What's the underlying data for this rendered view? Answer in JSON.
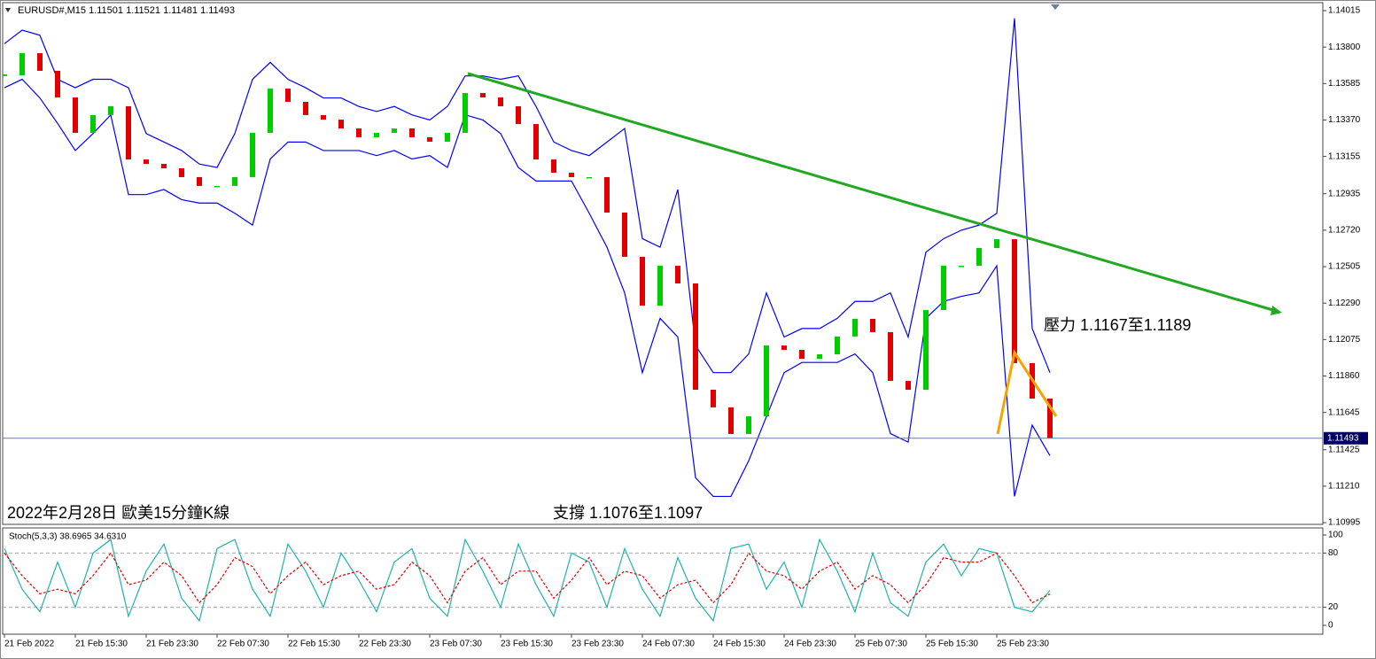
{
  "chart_data": [
    {
      "type": "candlestick",
      "title": "EURUSD#,M15  1.11501 1.11521 1.11481 1.11493",
      "annotations": [
        "2022年2月28日 歐美15分鐘K線",
        "支撐 1.1076至1.1097",
        "壓力 1.1167至1.1189"
      ],
      "values": [
        1.13634,
        1.13764,
        1.1366,
        1.13503,
        1.13294,
        1.13399,
        1.13451,
        1.13137,
        1.13111,
        1.13085,
        1.13033,
        1.12981,
        1.12981,
        1.13033,
        1.13294,
        1.13555,
        1.13477,
        1.13399,
        1.13372,
        1.1332,
        1.13268,
        1.13294,
        1.1332,
        1.13268,
        1.13242,
        1.13294,
        1.13529,
        1.13503,
        1.13451,
        1.13346,
        1.13137,
        1.13059,
        1.13033,
        1.13033,
        1.12824,
        1.12563,
        1.12275,
        1.1251,
        1.12406,
        1.11779,
        1.11675,
        1.11518,
        1.11622,
        1.1204,
        1.12014,
        1.11962,
        1.11988,
        1.12093,
        1.12197,
        1.12119,
        1.11831,
        1.11779,
        1.12249,
        1.1251,
        1.1251,
        1.12615,
        1.12667,
        1.11936,
        1.11727,
        1.11493
      ],
      "upper_band": [
        1.1382,
        1.139,
        1.1387,
        1.1361,
        1.1356,
        1.1361,
        1.1361,
        1.1356,
        1.1329,
        1.1324,
        1.1319,
        1.1311,
        1.1309,
        1.1329,
        1.1361,
        1.1371,
        1.1361,
        1.1356,
        1.135,
        1.135,
        1.1345,
        1.1342,
        1.1345,
        1.134,
        1.1337,
        1.1345,
        1.1363,
        1.1363,
        1.1361,
        1.1363,
        1.1345,
        1.1324,
        1.1319,
        1.1316,
        1.1324,
        1.1332,
        1.1267,
        1.1262,
        1.1296,
        1.1204,
        1.1188,
        1.1188,
        1.1199,
        1.1235,
        1.1209,
        1.1214,
        1.1214,
        1.122,
        1.123,
        1.123,
        1.1235,
        1.1209,
        1.1259,
        1.1267,
        1.1272,
        1.1275,
        1.1282,
        1.1397,
        1.1214,
        1.1188
      ],
      "lower_band": [
        1.1356,
        1.1361,
        1.135,
        1.1335,
        1.1319,
        1.1329,
        1.134,
        1.1293,
        1.1293,
        1.1296,
        1.129,
        1.1288,
        1.1288,
        1.1282,
        1.1275,
        1.1314,
        1.1324,
        1.1324,
        1.1319,
        1.1319,
        1.1319,
        1.1316,
        1.1319,
        1.1314,
        1.1316,
        1.1309,
        1.134,
        1.1337,
        1.1329,
        1.1309,
        1.1301,
        1.1301,
        1.1301,
        1.1282,
        1.1262,
        1.1235,
        1.1188,
        1.122,
        1.1209,
        1.1126,
        1.1115,
        1.1115,
        1.1136,
        1.1162,
        1.1188,
        1.1194,
        1.1194,
        1.1194,
        1.1199,
        1.1188,
        1.1152,
        1.1147,
        1.122,
        1.123,
        1.1233,
        1.1235,
        1.1251,
        1.1115,
        1.1157,
        1.1139
      ],
      "up_color": "#00cc00",
      "down_color": "#e00000",
      "band_color": "#0000ff",
      "current_price": 1.11493,
      "ylim": [
        1.10985,
        1.14062
      ],
      "yticks": [
        1.14015,
        {
          "value": 1.138,
          "label": "1.13800"
        },
        1.13585,
        {
          "value": 1.1337,
          "label": "1.13370"
        },
        1.13155,
        1.12935,
        {
          "value": 1.1272,
          "label": "1.12720"
        },
        1.12505,
        {
          "value": 1.1229,
          "label": "1.12290"
        },
        1.12075,
        {
          "value": 1.1186,
          "label": "1.11860"
        },
        1.11645,
        1.11425,
        {
          "value": 1.1121,
          "label": "1.11210"
        },
        1.10995
      ]
    },
    {
      "type": "stochastic",
      "title": "Stoch(5,3,3) 38.6965 34.6310",
      "k_values": [
        85,
        40,
        15,
        70,
        20,
        80,
        95,
        10,
        60,
        90,
        30,
        5,
        85,
        95,
        40,
        10,
        90,
        60,
        20,
        80,
        50,
        15,
        70,
        85,
        30,
        10,
        95,
        60,
        20,
        90,
        45,
        10,
        80,
        70,
        20,
        85,
        40,
        10,
        75,
        30,
        5,
        85,
        90,
        40,
        70,
        20,
        95,
        60,
        15,
        80,
        25,
        10,
        70,
        90,
        55,
        85,
        80,
        20,
        15,
        38.6965
      ],
      "d_values": [
        80,
        55,
        35,
        40,
        35,
        55,
        80,
        45,
        50,
        70,
        55,
        25,
        45,
        75,
        65,
        35,
        55,
        70,
        45,
        55,
        60,
        40,
        45,
        70,
        55,
        25,
        60,
        75,
        45,
        60,
        60,
        30,
        50,
        75,
        45,
        60,
        55,
        30,
        45,
        50,
        25,
        45,
        80,
        60,
        55,
        40,
        60,
        70,
        40,
        55,
        45,
        25,
        45,
        75,
        70,
        70,
        80,
        55,
        25,
        34.631
      ],
      "k_color": "#20b2aa",
      "d_color": "#e00000",
      "levels": [
        20,
        80
      ],
      "ylim": [
        0,
        100
      ],
      "yticks": [
        0,
        20,
        80,
        100
      ],
      "x_labels": [
        "21 Feb 2022",
        "21 Feb 15:30",
        "21 Feb 23:30",
        "22 Feb 07:30",
        "22 Feb 15:30",
        "22 Feb 23:30",
        "23 Feb 07:30",
        "23 Feb 15:30",
        "23 Feb 23:30",
        "24 Feb 07:30",
        "24 Feb 15:30",
        "24 Feb 23:30",
        "25 Feb 07:30",
        "25 Feb 15:30",
        "25 Feb 23:30"
      ]
    }
  ]
}
